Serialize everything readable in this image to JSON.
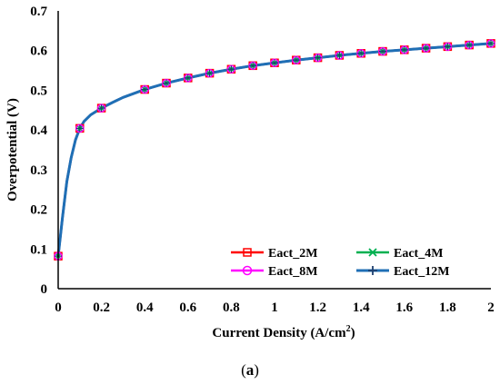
{
  "chart_data": {
    "type": "line",
    "xlabel": "Current Density (A/cm",
    "xlabel_sup": "2",
    "xlabel_end": ")",
    "ylabel": "Overpotential (V)",
    "xlim": [
      0,
      2
    ],
    "ylim": [
      0,
      0.7
    ],
    "xticks": [
      "0",
      "0.2",
      "0.4",
      "0.6",
      "0.8",
      "1",
      "1.2",
      "1.4",
      "1.6",
      "1.8",
      "2"
    ],
    "yticks": [
      "0",
      "0.1",
      "0.2",
      "0.3",
      "0.4",
      "0.5",
      "0.6",
      "0.7"
    ],
    "grid": false,
    "legend_position": "bottom-right",
    "curve_x": [
      0,
      0.02,
      0.04,
      0.06,
      0.08,
      0.1,
      0.12,
      0.15,
      0.2,
      0.25,
      0.3,
      0.4,
      0.5,
      0.6,
      0.7,
      0.8,
      0.9,
      1.0,
      1.1,
      1.2,
      1.3,
      1.4,
      1.5,
      1.6,
      1.7,
      1.8,
      1.9,
      2.0
    ],
    "curve_y": [
      0.082,
      0.18,
      0.27,
      0.33,
      0.375,
      0.404,
      0.422,
      0.438,
      0.455,
      0.469,
      0.482,
      0.502,
      0.518,
      0.531,
      0.543,
      0.553,
      0.562,
      0.569,
      0.576,
      0.582,
      0.588,
      0.593,
      0.598,
      0.602,
      0.606,
      0.61,
      0.614,
      0.618
    ],
    "marker_x": [
      0,
      0.1,
      0.2,
      0.4,
      0.5,
      0.6,
      0.7,
      0.8,
      0.9,
      1.0,
      1.1,
      1.2,
      1.3,
      1.4,
      1.5,
      1.6,
      1.7,
      1.8,
      1.9,
      2.0
    ],
    "marker_y": [
      0.082,
      0.404,
      0.455,
      0.502,
      0.518,
      0.531,
      0.543,
      0.553,
      0.562,
      0.569,
      0.576,
      0.582,
      0.588,
      0.593,
      0.598,
      0.602,
      0.606,
      0.61,
      0.614,
      0.618
    ],
    "series": [
      {
        "name": "Eact_2M",
        "color": "#ff0000",
        "marker": "square"
      },
      {
        "name": "Eact_4M",
        "color": "#00b050",
        "marker": "x"
      },
      {
        "name": "Eact_8M",
        "color": "#ff00ff",
        "marker": "circle"
      },
      {
        "name": "Eact_12M",
        "color": "#1f6fb5",
        "marker": "plus"
      }
    ]
  },
  "caption": {
    "open": "(",
    "letter": "a",
    "close": ")"
  }
}
